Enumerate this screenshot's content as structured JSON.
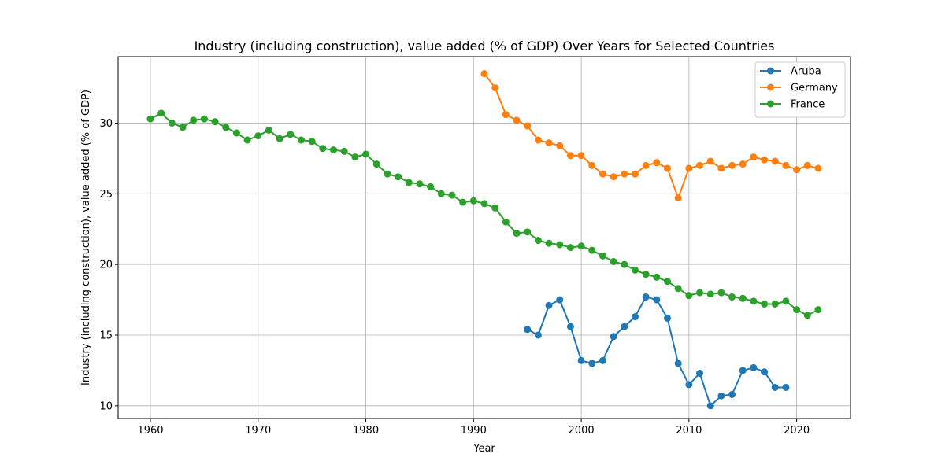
{
  "chart_data": {
    "type": "line",
    "title": "Industry (including construction), value added (% of GDP) Over Years for Selected Countries",
    "xlabel": "Year",
    "ylabel": "Industry (including construction), value added (% of GDP)",
    "xlim": [
      1957,
      2025
    ],
    "ylim": [
      9.1,
      34.7
    ],
    "xticks": [
      1960,
      1970,
      1980,
      1990,
      2000,
      2010,
      2020
    ],
    "yticks": [
      10,
      15,
      20,
      25,
      30
    ],
    "grid": true,
    "legend_position": "top-right",
    "series": [
      {
        "name": "Aruba",
        "color": "#1f77b4",
        "x": [
          1995,
          1996,
          1997,
          1998,
          1999,
          2000,
          2001,
          2002,
          2003,
          2004,
          2005,
          2006,
          2007,
          2008,
          2009,
          2010,
          2011,
          2012,
          2013,
          2014,
          2015,
          2016,
          2017,
          2018,
          2019
        ],
        "y": [
          15.4,
          15.0,
          17.1,
          17.5,
          15.6,
          13.2,
          13.0,
          13.2,
          14.9,
          15.6,
          16.3,
          17.7,
          17.5,
          16.2,
          13.0,
          11.5,
          12.3,
          10.0,
          10.7,
          10.8,
          12.5,
          12.7,
          12.4,
          11.3,
          11.3
        ]
      },
      {
        "name": "Germany",
        "color": "#ff7f0e",
        "x": [
          1991,
          1992,
          1993,
          1994,
          1995,
          1996,
          1997,
          1998,
          1999,
          2000,
          2001,
          2002,
          2003,
          2004,
          2005,
          2006,
          2007,
          2008,
          2009,
          2010,
          2011,
          2012,
          2013,
          2014,
          2015,
          2016,
          2017,
          2018,
          2019,
          2020,
          2021,
          2022
        ],
        "y": [
          33.5,
          32.5,
          30.6,
          30.2,
          29.8,
          28.8,
          28.6,
          28.4,
          27.7,
          27.7,
          27.0,
          26.4,
          26.2,
          26.4,
          26.4,
          27.0,
          27.2,
          26.8,
          24.7,
          26.8,
          27.0,
          27.3,
          26.8,
          27.0,
          27.1,
          27.6,
          27.4,
          27.3,
          27.0,
          26.7,
          27.0,
          26.8
        ]
      },
      {
        "name": "France",
        "color": "#2ca02c",
        "x": [
          1960,
          1961,
          1962,
          1963,
          1964,
          1965,
          1966,
          1967,
          1968,
          1969,
          1970,
          1971,
          1972,
          1973,
          1974,
          1975,
          1976,
          1977,
          1978,
          1979,
          1980,
          1981,
          1982,
          1983,
          1984,
          1985,
          1986,
          1987,
          1988,
          1989,
          1990,
          1991,
          1992,
          1993,
          1994,
          1995,
          1996,
          1997,
          1998,
          1999,
          2000,
          2001,
          2002,
          2003,
          2004,
          2005,
          2006,
          2007,
          2008,
          2009,
          2010,
          2011,
          2012,
          2013,
          2014,
          2015,
          2016,
          2017,
          2018,
          2019,
          2020,
          2021,
          2022
        ],
        "y": [
          30.3,
          30.7,
          30.0,
          29.7,
          30.2,
          30.3,
          30.1,
          29.7,
          29.3,
          28.8,
          29.1,
          29.5,
          28.9,
          29.2,
          28.8,
          28.7,
          28.2,
          28.1,
          28.0,
          27.6,
          27.8,
          27.1,
          26.4,
          26.2,
          25.8,
          25.7,
          25.5,
          25.0,
          24.9,
          24.4,
          24.5,
          24.3,
          24.0,
          23.0,
          22.2,
          22.3,
          21.7,
          21.5,
          21.4,
          21.2,
          21.3,
          21.0,
          20.6,
          20.2,
          20.0,
          19.6,
          19.3,
          19.1,
          18.8,
          18.3,
          17.8,
          18.0,
          17.9,
          18.0,
          17.7,
          17.6,
          17.4,
          17.2,
          17.2,
          17.4,
          16.8,
          16.4,
          16.8
        ]
      }
    ]
  }
}
